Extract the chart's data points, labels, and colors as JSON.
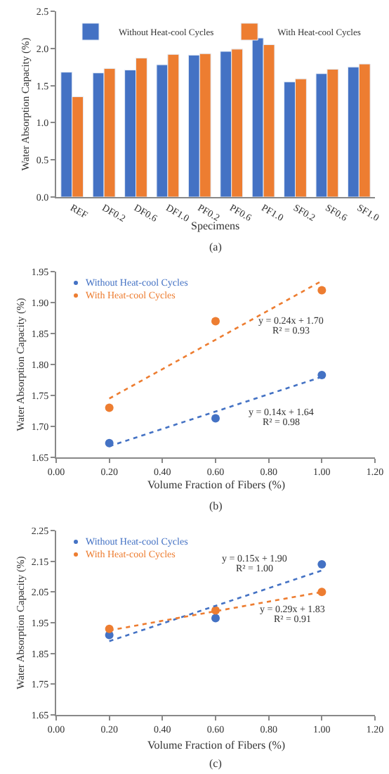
{
  "chart_data": [
    {
      "type": "bar",
      "xlabel": "Specimens",
      "ylabel": "Water Absorption Capacity (%)",
      "annotations": [
        "(a)"
      ],
      "categories": [
        "REF",
        "DF0.2",
        "DF0.6",
        "DF1.0",
        "PF0.2",
        "PF0.6",
        "PF1.0",
        "SF0.2",
        "SF0.6",
        "SF1.0"
      ],
      "series": [
        {
          "name": "Without Heat-cool Cycles",
          "color": "#4472c4",
          "values": [
            1.68,
            1.67,
            1.71,
            1.78,
            1.91,
            1.96,
            2.14,
            1.55,
            1.66,
            1.75
          ]
        },
        {
          "name": "With Heat-cool Cycles",
          "color": "#ed7d31",
          "values": [
            1.35,
            1.73,
            1.87,
            1.92,
            1.93,
            1.99,
            2.05,
            1.59,
            1.72,
            1.79
          ]
        }
      ],
      "ylim": [
        0,
        2.5
      ],
      "yticks": [
        {
          "value": 0,
          "label": "0.0"
        },
        0.5,
        {
          "value": 1,
          "label": "1.0"
        },
        1.5,
        {
          "value": 2,
          "label": "2.0"
        },
        2.5
      ],
      "legend": "top"
    },
    {
      "type": "scatter",
      "xlabel": "Volume Fraction of Fibers (%)",
      "ylabel": "Water Absorption Capacity (%)",
      "annotations": [
        "y = 0.24x + 1.70",
        "R² = 0.93",
        "y = 0.14x + 1.64",
        "R² = 0.98",
        "(b)"
      ],
      "series": [
        {
          "name": "Without Heat-cool Cycles",
          "color": "#4472c4",
          "x": [
            0.2,
            0.6,
            1.0
          ],
          "values": [
            1.673,
            1.713,
            1.783
          ],
          "marker": "circle"
        },
        {
          "name": "With Heat-cool Cycles",
          "color": "#ed7d31",
          "x": [
            0.2,
            0.6,
            1.0
          ],
          "values": [
            1.73,
            1.87,
            1.92
          ],
          "marker": "circle"
        },
        {
          "type": "line",
          "color": "#4472c4",
          "x": [
            0.2,
            1.0
          ],
          "values": [
            1.668,
            1.78
          ],
          "line_style": "dotted"
        },
        {
          "type": "line",
          "color": "#ed7d31",
          "x": [
            0.2,
            1.0
          ],
          "values": [
            1.745,
            1.935
          ],
          "line_style": "dotted"
        }
      ],
      "xlim": [
        0,
        1.2
      ],
      "xticks": [
        {
          "value": 0,
          "label": "0.00"
        },
        {
          "value": 0.2,
          "label": "0.20"
        },
        {
          "value": 0.4,
          "label": "0.40"
        },
        {
          "value": 0.6,
          "label": "0.60"
        },
        {
          "value": 0.8,
          "label": "0.80"
        },
        {
          "value": 1.0,
          "label": "1.00"
        },
        {
          "value": 1.2,
          "label": "1.20"
        }
      ],
      "ylim": [
        1.65,
        1.95
      ],
      "yticks": [
        1.65,
        {
          "value": 1.7,
          "label": "1.70"
        },
        1.75,
        {
          "value": 1.8,
          "label": "1.80"
        },
        1.85,
        {
          "value": 1.9,
          "label": "1.90"
        },
        1.95
      ],
      "legend": "top left"
    },
    {
      "type": "scatter",
      "xlabel": "Volume Fraction of Fibers (%)",
      "ylabel": "Water Absorption Capacity (%)",
      "annotations": [
        "y = 0.15x + 1.90",
        "R² = 1.00",
        "y = 0.29x + 1.83",
        "R² = 0.91",
        "(c)"
      ],
      "series": [
        {
          "name": "Without Heat-cool Cycles",
          "color": "#4472c4",
          "x": [
            0.2,
            0.6,
            1.0
          ],
          "values": [
            1.91,
            1.965,
            2.14
          ],
          "marker": "circle"
        },
        {
          "name": "With Heat-cool Cycles",
          "color": "#ed7d31",
          "x": [
            0.2,
            0.6,
            1.0
          ],
          "values": [
            1.93,
            1.99,
            2.05
          ],
          "marker": "circle"
        },
        {
          "type": "line",
          "color": "#4472c4",
          "x": [
            0.2,
            1.0
          ],
          "values": [
            1.89,
            2.12
          ],
          "line_style": "dotted"
        },
        {
          "type": "line",
          "color": "#ed7d31",
          "x": [
            0.2,
            1.0
          ],
          "values": [
            1.925,
            2.05
          ],
          "line_style": "dotted"
        }
      ],
      "xlim": [
        0,
        1.2
      ],
      "xticks": [
        {
          "value": 0,
          "label": "0.00"
        },
        {
          "value": 0.2,
          "label": "0.20"
        },
        {
          "value": 0.4,
          "label": "0.40"
        },
        {
          "value": 0.6,
          "label": "0.60"
        },
        {
          "value": 0.8,
          "label": "0.80"
        },
        {
          "value": 1.0,
          "label": "1.00"
        },
        {
          "value": 1.2,
          "label": "1.20"
        }
      ],
      "ylim": [
        1.65,
        2.25
      ],
      "yticks": [
        1.65,
        1.75,
        1.85,
        1.95,
        2.05,
        2.15,
        2.25
      ],
      "legend": "top left"
    }
  ]
}
